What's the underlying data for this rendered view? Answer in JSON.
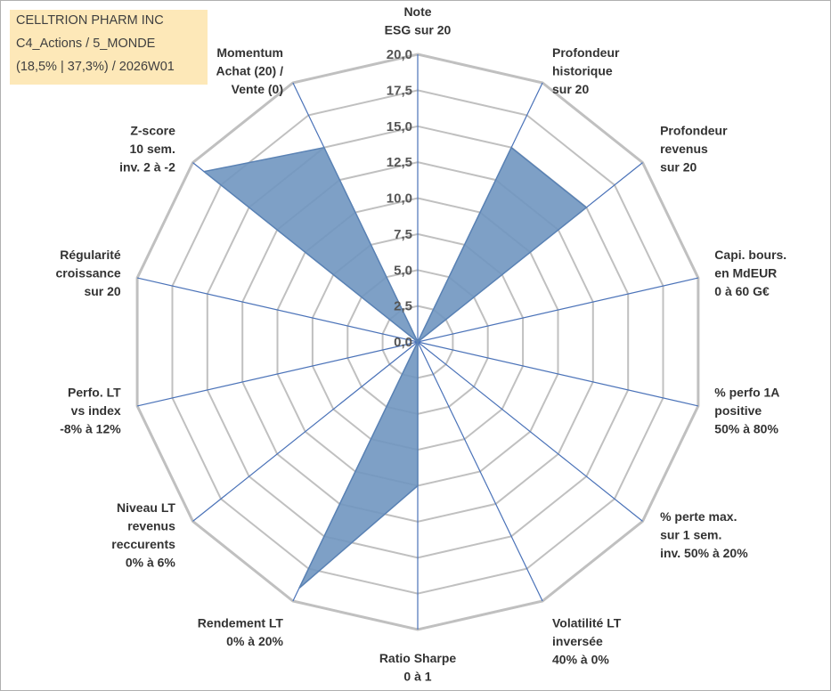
{
  "header": {
    "company": "CELLTRION PHARM INC",
    "portfolio": "C4_Actions / 5_MONDE",
    "stats": "(18,5% | 37,3%) / 2026W01"
  },
  "chart_data": {
    "type": "radar",
    "range": [
      0,
      20
    ],
    "tick_labels": [
      "0,0",
      "2,5",
      "5,0",
      "7,5",
      "10,0",
      "12,5",
      "15,0",
      "17,5",
      "20,0"
    ],
    "series_color": "#7096c0",
    "grid_color": "#c0c0c0",
    "axis_color": "#4a72b8",
    "axes": [
      {
        "label": [
          "Note",
          "ESG sur 20"
        ],
        "value": 0
      },
      {
        "label": [
          "Profondeur",
          "historique",
          "sur 20"
        ],
        "value": 15
      },
      {
        "label": [
          "Profondeur",
          "revenus",
          "sur 20"
        ],
        "value": 15
      },
      {
        "label": [
          "Capi. bours.",
          "en MdEUR",
          "0 à 60 G€"
        ],
        "value": 0
      },
      {
        "label": [
          "% perfo 1A",
          "positive",
          "50% à 80%"
        ],
        "value": 0
      },
      {
        "label": [
          "% perte max.",
          "sur 1 sem.",
          "inv. 50% à 20%"
        ],
        "value": 0
      },
      {
        "label": [
          "Volatilité LT",
          "inversée",
          "40% à 0%"
        ],
        "value": 0
      },
      {
        "label": [
          "Ratio Sharpe",
          "0 à 1"
        ],
        "value": 10
      },
      {
        "label": [
          "Rendement LT",
          "0% à 20%"
        ],
        "value": 19
      },
      {
        "label": [
          "Niveau LT",
          "revenus",
          "reccurents",
          "0% à 6%"
        ],
        "value": 0
      },
      {
        "label": [
          "Perfo. LT",
          "vs index",
          "-8% à 12%"
        ],
        "value": 0
      },
      {
        "label": [
          "Régularité",
          "croissance",
          "sur 20"
        ],
        "value": 0
      },
      {
        "label": [
          "Z-score",
          "10 sem.",
          "inv. 2 à -2"
        ],
        "value": 19
      },
      {
        "label": [
          "Momentum",
          "Achat (20) /",
          "Vente (0)"
        ],
        "value": 15
      }
    ]
  }
}
